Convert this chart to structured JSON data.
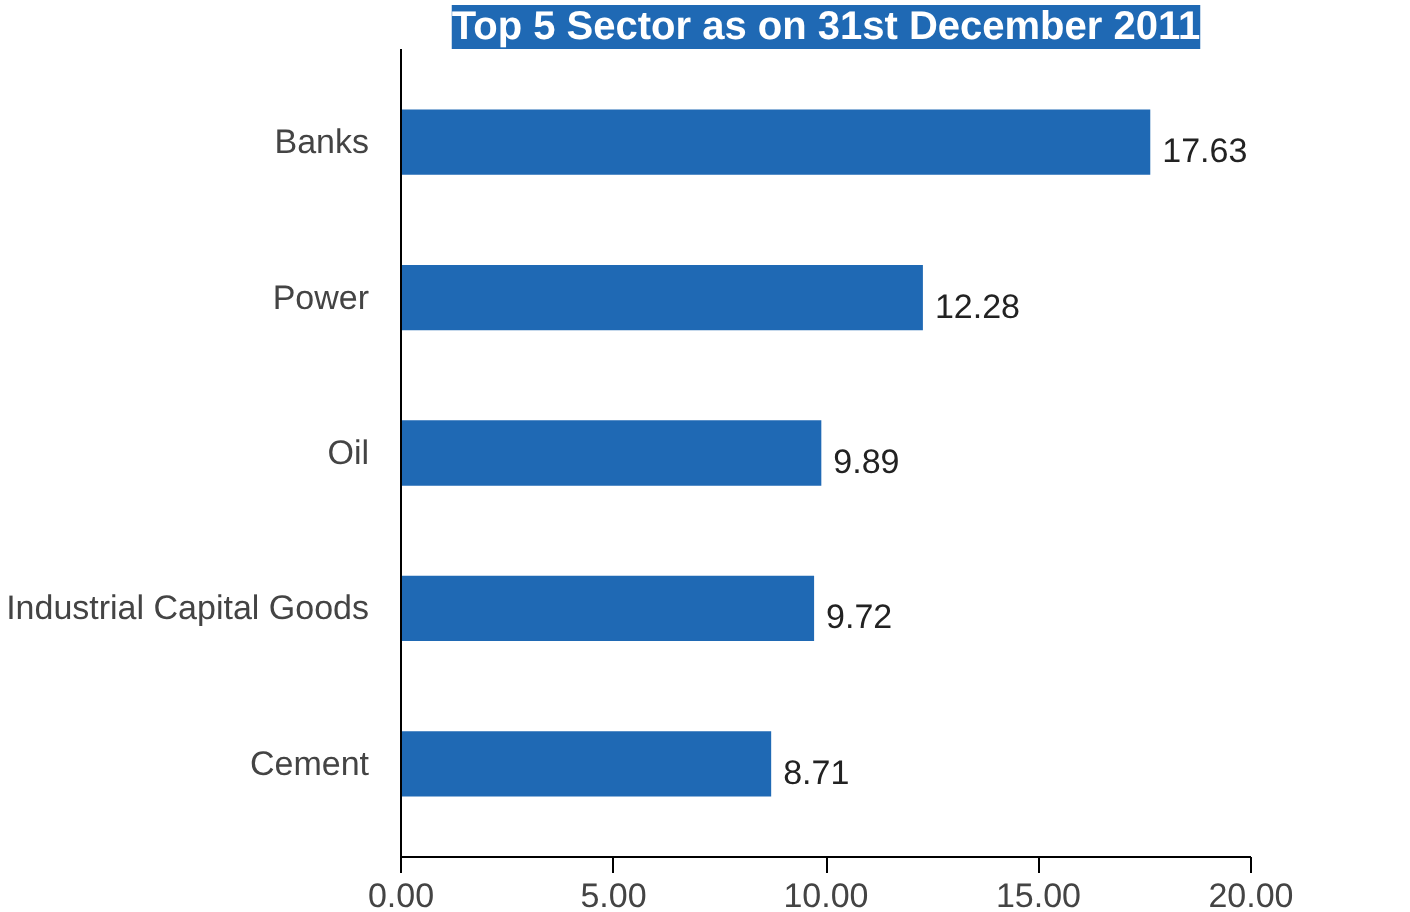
{
  "chart_data": {
    "type": "bar",
    "orientation": "horizontal",
    "title": "Top 5 Sector as on 31st December 2011",
    "categories": [
      "Banks",
      "Power",
      "Oil",
      "Industrial Capital Goods",
      "Cement"
    ],
    "values": [
      17.63,
      12.28,
      9.89,
      9.72,
      8.71
    ],
    "color": "#1f69b4",
    "xlim": [
      0,
      20
    ],
    "xticks": [
      {
        "value": 0,
        "label": "0.00"
      },
      {
        "value": 5,
        "label": "5.00"
      },
      {
        "value": 10,
        "label": "10.00"
      },
      {
        "value": 15,
        "label": "15.00"
      },
      {
        "value": 20,
        "label": "20.00"
      }
    ],
    "data_labels": true,
    "grid": false
  }
}
